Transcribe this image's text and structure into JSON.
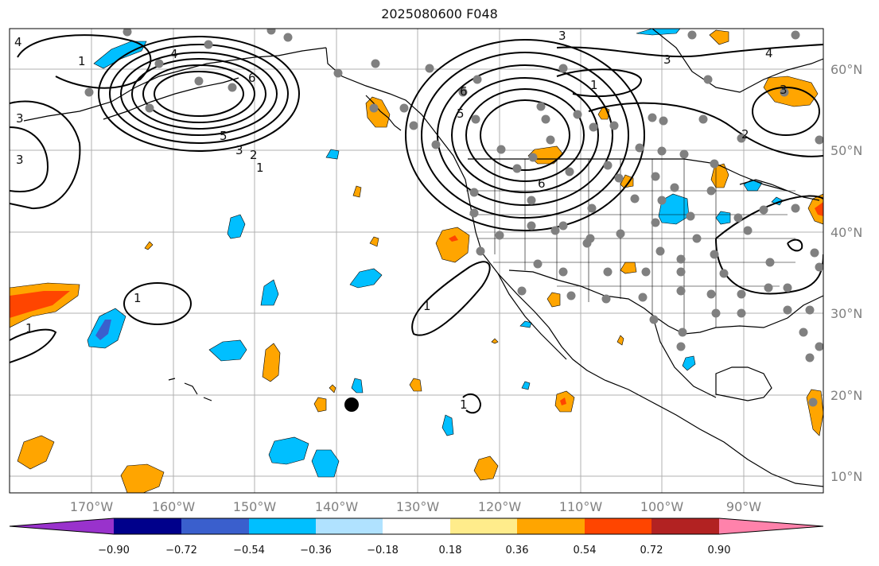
{
  "title": "2025080600 F048",
  "colors": {
    "neg_090": "#9932CC",
    "neg_072": "#00008B",
    "neg_054": "#3A5FCD",
    "neg_036": "#00BFFF",
    "neg_018": "#B0E2FF",
    "zero": "#FFFFFF",
    "pos_018": "#FFEC8B",
    "pos_036": "#FFA500",
    "pos_054": "#FF4500",
    "pos_072": "#B22222",
    "pos_090": "#FF82AB",
    "station": "#808080",
    "land_outline": "#000000",
    "grid": "#b0b0b0"
  },
  "axes": {
    "lon_labels": [
      "170°W",
      "160°W",
      "150°W",
      "140°W",
      "130°W",
      "120°W",
      "110°W",
      "100°W",
      "90°W"
    ],
    "lat_labels": [
      "60°N",
      "50°N",
      "40°N",
      "30°N",
      "20°N",
      "10°N"
    ]
  },
  "colorbar": {
    "ticks": [
      "−0.90",
      "−0.72",
      "−0.54",
      "−0.36",
      "−0.18",
      "0.18",
      "0.36",
      "0.54",
      "0.72",
      "0.90"
    ]
  },
  "contour_labels": [
    "4",
    "1",
    "4",
    "6",
    "5",
    "3",
    "2",
    "1",
    "3",
    "3",
    "1",
    "1",
    "1",
    "6",
    "5",
    "3",
    "1",
    "6",
    "2",
    "3",
    "4",
    "3",
    "1"
  ],
  "marker": "black-dot"
}
